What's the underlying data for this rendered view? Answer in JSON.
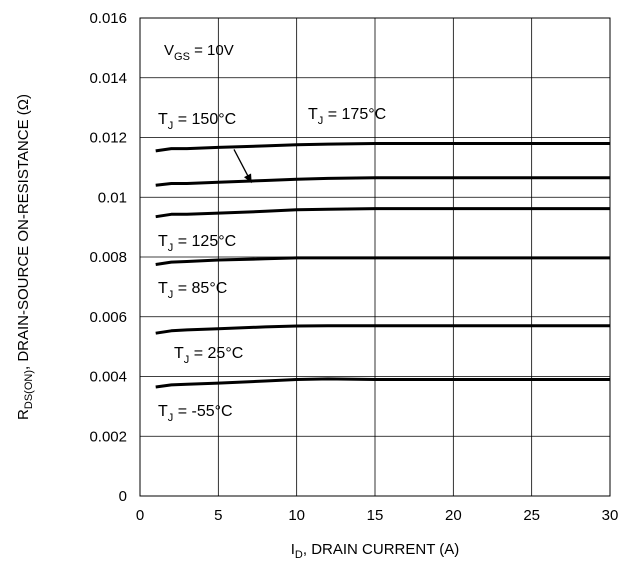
{
  "chart_data": {
    "type": "line",
    "xlabel": {
      "main": "I",
      "sub": "D",
      "rest": ", DRAIN CURRENT (A)"
    },
    "ylabel": {
      "main": "R",
      "sub": "DS(ON)",
      "rest": ", DRAIN-SOURCE ON-RESISTANCE (Ω)"
    },
    "xlim": [
      0,
      30
    ],
    "ylim": [
      0,
      0.016
    ],
    "x_ticks": [
      0,
      5,
      10,
      15,
      20,
      25,
      30
    ],
    "x_tick_labels": [
      "0",
      "5",
      "10",
      "15",
      "20",
      "25",
      "30"
    ],
    "y_ticks": [
      0,
      0.002,
      0.004,
      0.006,
      0.008,
      0.01,
      0.012,
      0.014,
      0.016
    ],
    "y_tick_labels": [
      "0",
      "0.002",
      "0.004",
      "0.006",
      "0.008",
      "0.01",
      "0.012",
      "0.014",
      "0.016"
    ],
    "grid": true,
    "condition": {
      "main": "V",
      "sub": "GS",
      "rest": " = 10V"
    },
    "series": [
      {
        "name": "T_J = 175°C",
        "label_main": "T",
        "label_sub": "J",
        "label_rest": " = 175°C",
        "x": [
          1,
          2,
          3,
          5,
          8,
          10,
          12,
          15,
          20,
          25,
          30
        ],
        "y": [
          0.01155,
          0.01163,
          0.01163,
          0.01167,
          0.01172,
          0.01176,
          0.01178,
          0.0118,
          0.0118,
          0.0118,
          0.0118
        ]
      },
      {
        "name": "T_J = 150°C",
        "label_main": "T",
        "label_sub": "J",
        "label_rest": " = 150°C",
        "x": [
          1,
          2,
          3,
          5,
          8,
          10,
          12,
          15,
          20,
          25,
          30
        ],
        "y": [
          0.0104,
          0.01046,
          0.01046,
          0.0105,
          0.01056,
          0.0106,
          0.01063,
          0.01065,
          0.01065,
          0.01065,
          0.01065
        ]
      },
      {
        "name": "T_J = 125°C",
        "label_main": "T",
        "label_sub": "J",
        "label_rest": " = 125°C",
        "x": [
          1,
          2,
          3,
          5,
          8,
          10,
          12,
          15,
          20,
          25,
          30
        ],
        "y": [
          0.00935,
          0.00943,
          0.00943,
          0.00947,
          0.00953,
          0.00958,
          0.0096,
          0.00962,
          0.00962,
          0.00962,
          0.00962
        ]
      },
      {
        "name": "T_J = 85°C",
        "label_main": "T",
        "label_sub": "J",
        "label_rest": " = 85°C",
        "x": [
          1,
          2,
          3,
          5,
          8,
          10,
          12,
          15,
          20,
          25,
          30
        ],
        "y": [
          0.00775,
          0.00783,
          0.00785,
          0.0079,
          0.00794,
          0.00797,
          0.00797,
          0.00797,
          0.00797,
          0.00797,
          0.00797
        ]
      },
      {
        "name": "T_J = 25°C",
        "label_main": "T",
        "label_sub": "J",
        "label_rest": " = 25°C",
        "x": [
          1,
          2,
          3,
          5,
          8,
          10,
          12,
          15,
          20,
          25,
          30
        ],
        "y": [
          0.00545,
          0.00553,
          0.00556,
          0.0056,
          0.00566,
          0.00569,
          0.0057,
          0.0057,
          0.0057,
          0.0057,
          0.0057
        ]
      },
      {
        "name": "T_J = -55°C",
        "label_main": "T",
        "label_sub": "J",
        "label_rest": " = -55°C",
        "x": [
          1,
          2,
          3,
          5,
          8,
          10,
          12,
          15,
          20,
          25,
          30
        ],
        "y": [
          0.00365,
          0.00372,
          0.00374,
          0.00378,
          0.00385,
          0.0039,
          0.00392,
          0.0039,
          0.0039,
          0.0039,
          0.0039
        ]
      }
    ],
    "annotation_arrow": {
      "points_to_series": "T_J = 150°C",
      "from": [
        6.0,
        0.0116
      ],
      "to": [
        7.1,
        0.0105
      ]
    }
  }
}
